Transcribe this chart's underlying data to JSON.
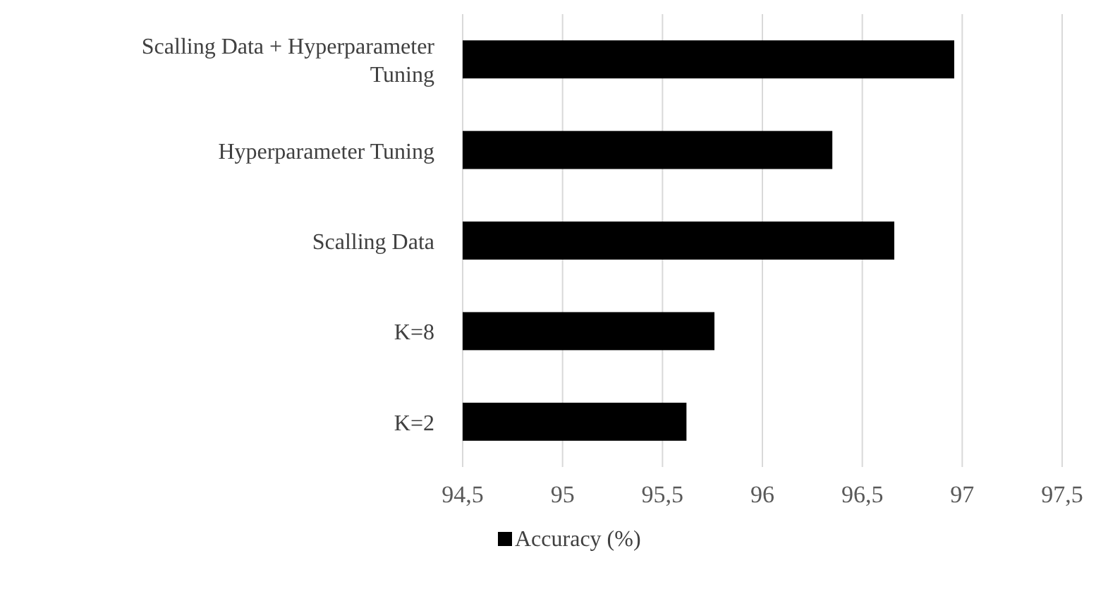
{
  "chart_data": {
    "type": "bar",
    "orientation": "horizontal",
    "categories": [
      "Scalling Data + Hyperparameter Tuning",
      "Hyperparameter Tuning",
      "Scalling Data",
      "K=8",
      "K=2"
    ],
    "series": [
      {
        "name": "Accuracy (%)",
        "color": "#000000",
        "values": [
          96.96,
          96.35,
          96.66,
          95.76,
          95.62
        ]
      }
    ],
    "xlim": [
      94.5,
      97.5
    ],
    "xticks": [
      {
        "value": 94.5,
        "label": "94,5"
      },
      95,
      {
        "value": 95.5,
        "label": "95,5"
      },
      96,
      {
        "value": 96.5,
        "label": "96,5"
      },
      97,
      {
        "value": 97.5,
        "label": "97,5"
      }
    ],
    "grid": "x",
    "legend": "bottom"
  }
}
